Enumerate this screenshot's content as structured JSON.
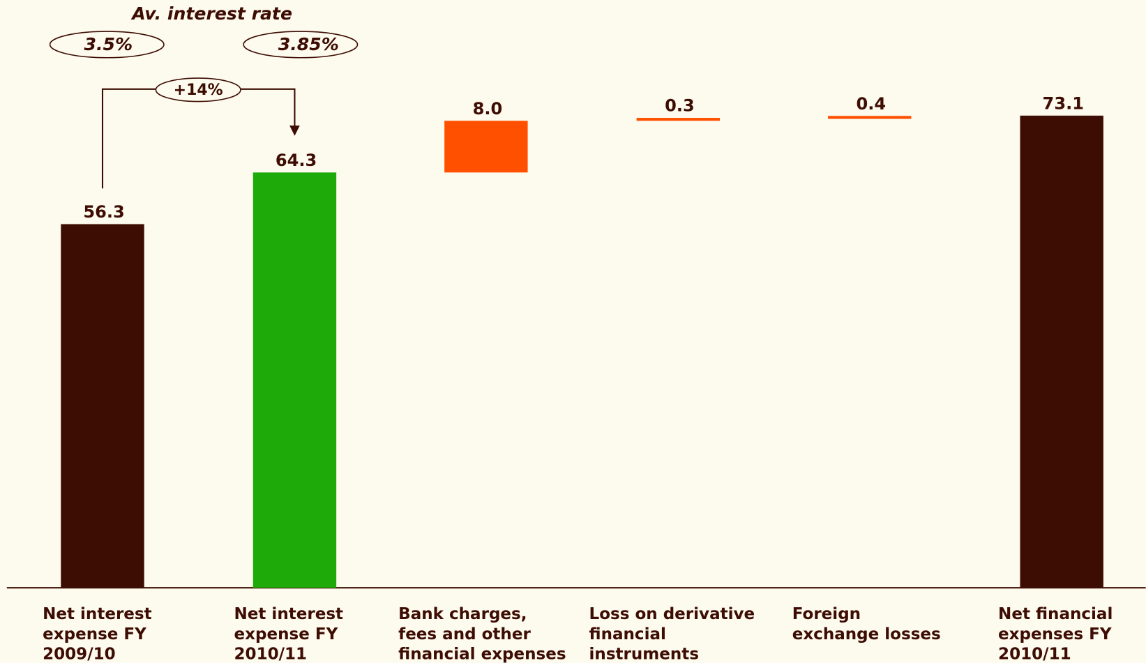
{
  "chart_data": {
    "type": "waterfall",
    "categories": [
      [
        "Net interest",
        "expense FY",
        "2009/10"
      ],
      [
        "Net interest",
        "expense FY",
        "2010/11"
      ],
      [
        "Bank charges,",
        "fees and other",
        "financial expenses"
      ],
      [
        "Loss on derivative",
        "financial",
        "instruments"
      ],
      [
        "Foreign",
        "exchange losses"
      ],
      [
        "Net financial",
        "expenses FY",
        "2010/11"
      ]
    ],
    "values": [
      56.3,
      64.3,
      8.0,
      0.3,
      0.4,
      73.1
    ],
    "value_labels": [
      "56.3",
      "64.3",
      "8.0",
      "0.3",
      "0.4",
      "73.1"
    ],
    "kinds": [
      "total",
      "total",
      "delta",
      "delta",
      "delta",
      "total"
    ],
    "colors": [
      "#3d0c02",
      "#1eab0a",
      "#ff5000",
      "#ff5000",
      "#ff5000",
      "#3d0c02"
    ],
    "ylim": [
      0,
      91
    ],
    "annotations": {
      "heading": "Av. interest rate",
      "rate_before": "3.5%",
      "rate_after": "3.85%",
      "change": "+14%"
    }
  }
}
